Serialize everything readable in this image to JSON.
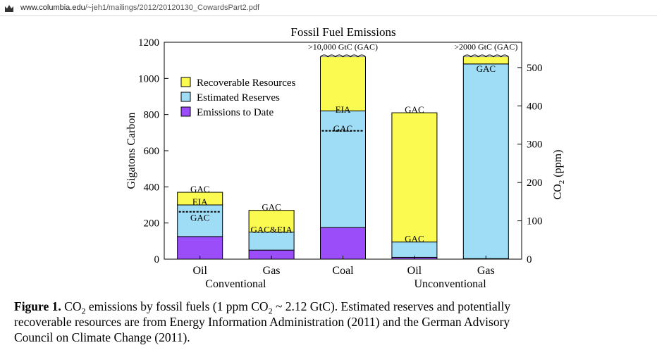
{
  "browser": {
    "url_host": "www.columbia.edu",
    "url_path": "/~jeh1/mailings/2012/20120130_CowardsPart2.pdf"
  },
  "caption": {
    "label": "Figure 1.",
    "line1_a": "CO",
    "line1_sub": "2",
    "line1_b": " emissions by fossil fuels (1 ppm CO",
    "line1_sub2": "2",
    "line1_c": " ~ 2.12 GtC).  Estimated reserves and potentially",
    "line2": "recoverable resources are from Energy Information Administration (2011) and the German Advisory",
    "line3": "Council on Climate Change (2011)."
  },
  "chart_data": {
    "type": "bar",
    "stacked": true,
    "title": "Fossil Fuel Emissions",
    "ylabel": "Gigatons Carbon",
    "y2label_a": "CO",
    "y2label_sub": "2",
    "y2label_b": " (ppm)",
    "ylim": [
      0,
      1200
    ],
    "yticks": [
      0,
      200,
      400,
      600,
      800,
      1000,
      1200
    ],
    "y2lim": [
      0,
      566
    ],
    "y2ticks": [
      0,
      100,
      200,
      300,
      400,
      500
    ],
    "categories": [
      "Oil",
      "Gas",
      "Coal",
      "Oil",
      "Gas"
    ],
    "groups": [
      {
        "label": "Conventional",
        "categories": [
          0,
          1
        ]
      },
      {
        "label": "Unconventional",
        "categories": [
          3,
          4
        ]
      }
    ],
    "colors": {
      "Emissions to Date": "#9b4dfa",
      "Estimated Reserves": "#9fdcf5",
      "Recoverable Resources": "#fafa50"
    },
    "legend": [
      "Recoverable Resources",
      "Estimated Reserves",
      "Emissions to Date"
    ],
    "series": [
      {
        "name": "Emissions to Date",
        "values": [
          125,
          50,
          175,
          10,
          3
        ]
      },
      {
        "name": "Estimated Reserves",
        "values": [
          175,
          100,
          645,
          85,
          1077
        ]
      },
      {
        "name": "Recoverable Resources",
        "values": [
          70,
          120,
          300,
          715,
          40
        ]
      }
    ],
    "dashed_markers": [
      {
        "category": 0,
        "value": 262
      },
      {
        "category": 2,
        "value": 710
      }
    ],
    "annotations": [
      {
        "category": 0,
        "text": "GAC",
        "y": 390
      },
      {
        "category": 0,
        "text": "EIA",
        "y": 320
      },
      {
        "category": 0,
        "text": "GAC",
        "y": 232
      },
      {
        "category": 1,
        "text": "GAC",
        "y": 290
      },
      {
        "category": 1,
        "text": "GAC&EIA",
        "y": 165
      },
      {
        "category": 2,
        "text": "EIA",
        "y": 830
      },
      {
        "category": 2,
        "text": "GAC",
        "y": 725
      },
      {
        "category": 3,
        "text": "GAC",
        "y": 830
      },
      {
        "category": 3,
        "text": "GAC",
        "y": 115
      },
      {
        "category": 4,
        "text": "GAC",
        "y": 1055
      }
    ],
    "break_labels": [
      {
        "category": 2,
        "text": ">10,000 GtC (GAC)"
      },
      {
        "category": 4,
        "text": ">2000 GtC (GAC)"
      }
    ]
  }
}
